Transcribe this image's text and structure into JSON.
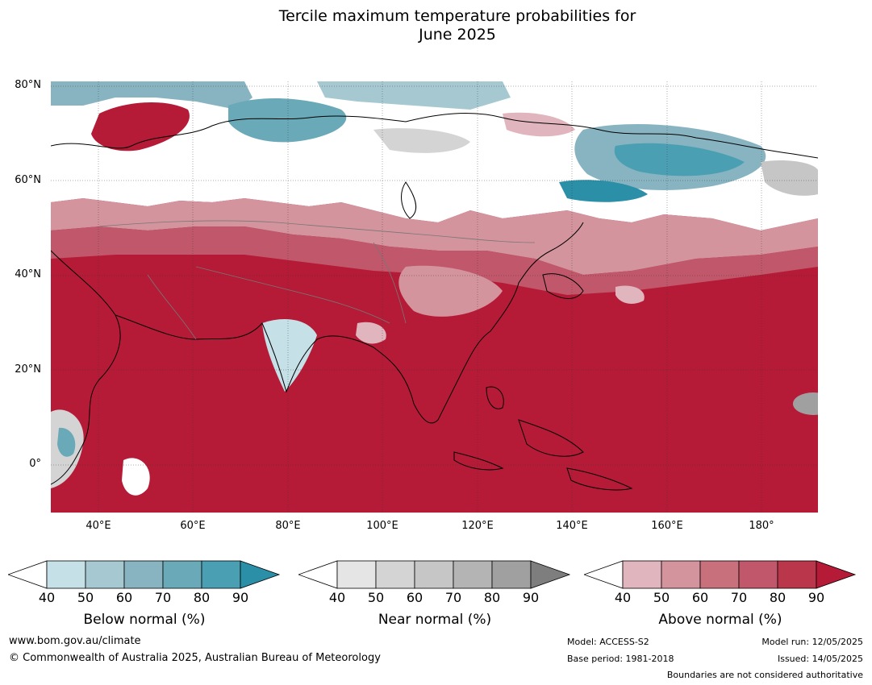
{
  "title_line1": "Tercile maximum temperature probabilities for",
  "title_line2": "June 2025",
  "map": {
    "region": "Asia",
    "lat_labels": [
      "80°N",
      "60°N",
      "40°N",
      "20°N",
      "0°"
    ],
    "lon_labels": [
      "40°E",
      "60°E",
      "80°E",
      "100°E",
      "120°E",
      "140°E",
      "160°E",
      "180°"
    ]
  },
  "colorbars": [
    {
      "title": "Below normal (%)",
      "ticks": [
        "40",
        "50",
        "60",
        "70",
        "80",
        "90"
      ],
      "colors": [
        "#c6e0e7",
        "#a6c8d0",
        "#88b4c2",
        "#6aa9b7",
        "#4b9fb3",
        "#2a8fa7"
      ]
    },
    {
      "title": "Near normal (%)",
      "ticks": [
        "40",
        "50",
        "60",
        "70",
        "80",
        "90"
      ],
      "colors": [
        "#e5e5e5",
        "#d4d4d4",
        "#c6c6c6",
        "#b4b4b4",
        "#a0a0a0",
        "#7e7e7e"
      ]
    },
    {
      "title": "Above normal (%)",
      "ticks": [
        "40",
        "50",
        "60",
        "70",
        "80",
        "90"
      ],
      "colors": [
        "#e0b5bd",
        "#d4949d",
        "#c8717c",
        "#c1576a",
        "#b9364b",
        "#b51b37"
      ]
    }
  ],
  "footer": {
    "website": "www.bom.gov.au/climate",
    "copyright": "© Commonwealth of Australia 2025, Australian Bureau of Meteorology",
    "model": "Model: ACCESS-S2",
    "base_period": "Base period: 1981-2018",
    "model_run": "Model run: 12/05/2025",
    "issued": "Issued: 14/05/2025",
    "disclaimer": "Boundaries are not considered authoritative"
  }
}
